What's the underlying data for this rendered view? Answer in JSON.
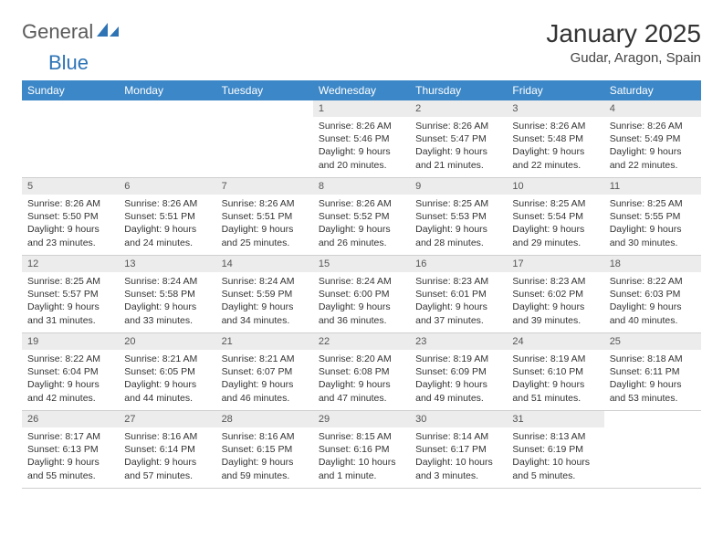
{
  "brand": {
    "general": "General",
    "blue": "Blue"
  },
  "title": "January 2025",
  "location": "Gudar, Aragon, Spain",
  "colors": {
    "header_bg": "#3c87c7",
    "header_text": "#ffffff",
    "daynum_bg": "#ececec",
    "body_text": "#333333",
    "border": "#cfcfcf",
    "page_bg": "#ffffff",
    "logo_gray": "#5a5a5a",
    "logo_blue": "#2e74b5"
  },
  "day_names": [
    "Sunday",
    "Monday",
    "Tuesday",
    "Wednesday",
    "Thursday",
    "Friday",
    "Saturday"
  ],
  "weeks": [
    [
      null,
      null,
      null,
      {
        "n": "1",
        "sr": "Sunrise: 8:26 AM",
        "ss": "Sunset: 5:46 PM",
        "dl1": "Daylight: 9 hours",
        "dl2": "and 20 minutes."
      },
      {
        "n": "2",
        "sr": "Sunrise: 8:26 AM",
        "ss": "Sunset: 5:47 PM",
        "dl1": "Daylight: 9 hours",
        "dl2": "and 21 minutes."
      },
      {
        "n": "3",
        "sr": "Sunrise: 8:26 AM",
        "ss": "Sunset: 5:48 PM",
        "dl1": "Daylight: 9 hours",
        "dl2": "and 22 minutes."
      },
      {
        "n": "4",
        "sr": "Sunrise: 8:26 AM",
        "ss": "Sunset: 5:49 PM",
        "dl1": "Daylight: 9 hours",
        "dl2": "and 22 minutes."
      }
    ],
    [
      {
        "n": "5",
        "sr": "Sunrise: 8:26 AM",
        "ss": "Sunset: 5:50 PM",
        "dl1": "Daylight: 9 hours",
        "dl2": "and 23 minutes."
      },
      {
        "n": "6",
        "sr": "Sunrise: 8:26 AM",
        "ss": "Sunset: 5:51 PM",
        "dl1": "Daylight: 9 hours",
        "dl2": "and 24 minutes."
      },
      {
        "n": "7",
        "sr": "Sunrise: 8:26 AM",
        "ss": "Sunset: 5:51 PM",
        "dl1": "Daylight: 9 hours",
        "dl2": "and 25 minutes."
      },
      {
        "n": "8",
        "sr": "Sunrise: 8:26 AM",
        "ss": "Sunset: 5:52 PM",
        "dl1": "Daylight: 9 hours",
        "dl2": "and 26 minutes."
      },
      {
        "n": "9",
        "sr": "Sunrise: 8:25 AM",
        "ss": "Sunset: 5:53 PM",
        "dl1": "Daylight: 9 hours",
        "dl2": "and 28 minutes."
      },
      {
        "n": "10",
        "sr": "Sunrise: 8:25 AM",
        "ss": "Sunset: 5:54 PM",
        "dl1": "Daylight: 9 hours",
        "dl2": "and 29 minutes."
      },
      {
        "n": "11",
        "sr": "Sunrise: 8:25 AM",
        "ss": "Sunset: 5:55 PM",
        "dl1": "Daylight: 9 hours",
        "dl2": "and 30 minutes."
      }
    ],
    [
      {
        "n": "12",
        "sr": "Sunrise: 8:25 AM",
        "ss": "Sunset: 5:57 PM",
        "dl1": "Daylight: 9 hours",
        "dl2": "and 31 minutes."
      },
      {
        "n": "13",
        "sr": "Sunrise: 8:24 AM",
        "ss": "Sunset: 5:58 PM",
        "dl1": "Daylight: 9 hours",
        "dl2": "and 33 minutes."
      },
      {
        "n": "14",
        "sr": "Sunrise: 8:24 AM",
        "ss": "Sunset: 5:59 PM",
        "dl1": "Daylight: 9 hours",
        "dl2": "and 34 minutes."
      },
      {
        "n": "15",
        "sr": "Sunrise: 8:24 AM",
        "ss": "Sunset: 6:00 PM",
        "dl1": "Daylight: 9 hours",
        "dl2": "and 36 minutes."
      },
      {
        "n": "16",
        "sr": "Sunrise: 8:23 AM",
        "ss": "Sunset: 6:01 PM",
        "dl1": "Daylight: 9 hours",
        "dl2": "and 37 minutes."
      },
      {
        "n": "17",
        "sr": "Sunrise: 8:23 AM",
        "ss": "Sunset: 6:02 PM",
        "dl1": "Daylight: 9 hours",
        "dl2": "and 39 minutes."
      },
      {
        "n": "18",
        "sr": "Sunrise: 8:22 AM",
        "ss": "Sunset: 6:03 PM",
        "dl1": "Daylight: 9 hours",
        "dl2": "and 40 minutes."
      }
    ],
    [
      {
        "n": "19",
        "sr": "Sunrise: 8:22 AM",
        "ss": "Sunset: 6:04 PM",
        "dl1": "Daylight: 9 hours",
        "dl2": "and 42 minutes."
      },
      {
        "n": "20",
        "sr": "Sunrise: 8:21 AM",
        "ss": "Sunset: 6:05 PM",
        "dl1": "Daylight: 9 hours",
        "dl2": "and 44 minutes."
      },
      {
        "n": "21",
        "sr": "Sunrise: 8:21 AM",
        "ss": "Sunset: 6:07 PM",
        "dl1": "Daylight: 9 hours",
        "dl2": "and 46 minutes."
      },
      {
        "n": "22",
        "sr": "Sunrise: 8:20 AM",
        "ss": "Sunset: 6:08 PM",
        "dl1": "Daylight: 9 hours",
        "dl2": "and 47 minutes."
      },
      {
        "n": "23",
        "sr": "Sunrise: 8:19 AM",
        "ss": "Sunset: 6:09 PM",
        "dl1": "Daylight: 9 hours",
        "dl2": "and 49 minutes."
      },
      {
        "n": "24",
        "sr": "Sunrise: 8:19 AM",
        "ss": "Sunset: 6:10 PM",
        "dl1": "Daylight: 9 hours",
        "dl2": "and 51 minutes."
      },
      {
        "n": "25",
        "sr": "Sunrise: 8:18 AM",
        "ss": "Sunset: 6:11 PM",
        "dl1": "Daylight: 9 hours",
        "dl2": "and 53 minutes."
      }
    ],
    [
      {
        "n": "26",
        "sr": "Sunrise: 8:17 AM",
        "ss": "Sunset: 6:13 PM",
        "dl1": "Daylight: 9 hours",
        "dl2": "and 55 minutes."
      },
      {
        "n": "27",
        "sr": "Sunrise: 8:16 AM",
        "ss": "Sunset: 6:14 PM",
        "dl1": "Daylight: 9 hours",
        "dl2": "and 57 minutes."
      },
      {
        "n": "28",
        "sr": "Sunrise: 8:16 AM",
        "ss": "Sunset: 6:15 PM",
        "dl1": "Daylight: 9 hours",
        "dl2": "and 59 minutes."
      },
      {
        "n": "29",
        "sr": "Sunrise: 8:15 AM",
        "ss": "Sunset: 6:16 PM",
        "dl1": "Daylight: 10 hours",
        "dl2": "and 1 minute."
      },
      {
        "n": "30",
        "sr": "Sunrise: 8:14 AM",
        "ss": "Sunset: 6:17 PM",
        "dl1": "Daylight: 10 hours",
        "dl2": "and 3 minutes."
      },
      {
        "n": "31",
        "sr": "Sunrise: 8:13 AM",
        "ss": "Sunset: 6:19 PM",
        "dl1": "Daylight: 10 hours",
        "dl2": "and 5 minutes."
      },
      null
    ]
  ]
}
